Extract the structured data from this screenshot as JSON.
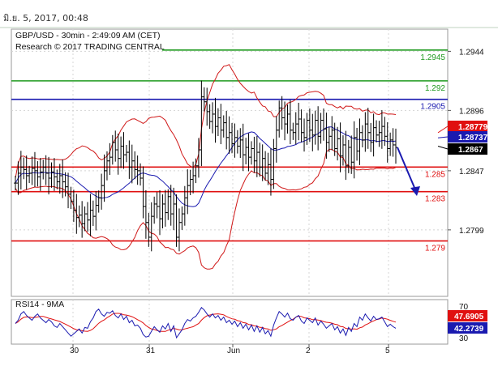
{
  "header": {
    "timestamp": "มิ.ย. 5, 2017, 00:48"
  },
  "chart_data": {
    "type": "candlestick",
    "title": "GBP/USD - 30min - 2:49:09 AM (CET)",
    "subtitle": "Research © 2017 TRADING CENTRAL",
    "ylim": [
      1.2745,
      1.2962
    ],
    "y_ticks": [
      "1.2944",
      "1.2896",
      "1.2847",
      "1.2799"
    ],
    "x_ticks": [
      "30",
      "31",
      "Jun",
      "2",
      "5"
    ],
    "levels": [
      {
        "value": "1.2945",
        "price": 1.2945,
        "color": "#1f9a1f"
      },
      {
        "value": "1.292",
        "price": 1.292,
        "color": "#1f9a1f"
      },
      {
        "value": "1.2905",
        "price": 1.2905,
        "color": "#1a1ab0"
      },
      {
        "value": "1.285",
        "price": 1.285,
        "color": "#e01010"
      },
      {
        "value": "1.283",
        "price": 1.283,
        "color": "#e01010"
      },
      {
        "value": "1.279",
        "price": 1.279,
        "color": "#e01010"
      }
    ],
    "price_markers": [
      {
        "value": "1.28779",
        "price": 1.28779,
        "color": "#e01010"
      },
      {
        "value": "1.28737",
        "price": 1.28737,
        "color": "#1a1ab0"
      },
      {
        "value": "1.2867",
        "price": 1.2867,
        "color": "#000000"
      }
    ],
    "closes": [
      1.2837,
      1.2845,
      1.285,
      1.2848,
      1.2843,
      1.2845,
      1.2849,
      1.2847,
      1.2842,
      1.2846,
      1.285,
      1.2845,
      1.2841,
      1.2846,
      1.2842,
      1.2838,
      1.2843,
      1.2838,
      1.2834,
      1.2828,
      1.2822,
      1.2815,
      1.2809,
      1.2811,
      1.2804,
      1.2812,
      1.2807,
      1.2815,
      1.281,
      1.2819,
      1.2825,
      1.2835,
      1.2847,
      1.2855,
      1.2858,
      1.287,
      1.2864,
      1.2857,
      1.2867,
      1.286,
      1.2862,
      1.285,
      1.2855,
      1.2848,
      1.2847,
      1.2841,
      1.2818,
      1.2805,
      1.2793,
      1.281,
      1.282,
      1.2818,
      1.2808,
      1.282,
      1.2813,
      1.2826,
      1.2812,
      1.282,
      1.2793,
      1.2805,
      1.2812,
      1.2825,
      1.2835,
      1.284,
      1.2843,
      1.2851,
      1.2864,
      1.2907,
      1.2903,
      1.2895,
      1.2887,
      1.2893,
      1.2883,
      1.289,
      1.288,
      1.2886,
      1.2874,
      1.2878,
      1.2869,
      1.2874,
      1.2867,
      1.2872,
      1.286,
      1.2866,
      1.2858,
      1.2865,
      1.2855,
      1.2862,
      1.285,
      1.2857,
      1.2845,
      1.2852,
      1.284,
      1.2865,
      1.288,
      1.2898,
      1.289,
      1.2885,
      1.2893,
      1.288,
      1.2878,
      1.2885,
      1.2889,
      1.2878,
      1.2874,
      1.2888,
      1.288,
      1.2876,
      1.2888,
      1.2875,
      1.2888,
      1.2881,
      1.287,
      1.2875,
      1.288,
      1.2865,
      1.2873,
      1.2859,
      1.2868,
      1.2851,
      1.2866,
      1.2854,
      1.2874,
      1.2863,
      1.2878,
      1.2872,
      1.2885,
      1.2878,
      1.287,
      1.2882,
      1.2876,
      1.2878,
      1.2883,
      1.2875,
      1.2865,
      1.2872,
      1.2868,
      1.2866
    ],
    "rsi": {
      "label": "RSI14 - 9MA",
      "ylim": [
        22,
        78
      ],
      "ticks": [
        "70",
        "30"
      ],
      "rsi_value": "42.2739",
      "ma_value": "47.6905",
      "rsi_color": "#1a1ab0",
      "ma_color": "#e01010",
      "values": [
        48,
        52,
        60,
        63,
        58,
        55,
        52,
        57,
        60,
        55,
        52,
        49,
        53,
        50,
        45,
        43,
        48,
        44,
        40,
        36,
        32,
        35,
        38,
        41,
        36,
        43,
        42,
        50,
        55,
        63,
        66,
        60,
        57,
        62,
        61,
        64,
        58,
        55,
        60,
        53,
        57,
        49,
        52,
        45,
        46,
        42,
        34,
        31,
        32,
        38,
        44,
        40,
        37,
        45,
        41,
        48,
        38,
        45,
        30,
        35,
        40,
        48,
        53,
        51,
        55,
        57,
        62,
        68,
        65,
        60,
        56,
        60,
        55,
        58,
        52,
        56,
        49,
        52,
        47,
        51,
        44,
        49,
        42,
        47,
        40,
        46,
        38,
        45,
        37,
        43,
        35,
        39,
        32,
        46,
        55,
        63,
        60,
        56,
        61,
        54,
        52,
        56,
        58,
        51,
        48,
        55,
        52,
        49,
        55,
        46,
        51,
        47,
        42,
        45,
        48,
        40,
        44,
        36,
        41,
        33,
        43,
        38,
        48,
        44,
        56,
        52,
        60,
        55,
        51,
        57,
        53,
        54,
        56,
        50,
        44,
        47,
        44,
        42
      ]
    }
  }
}
